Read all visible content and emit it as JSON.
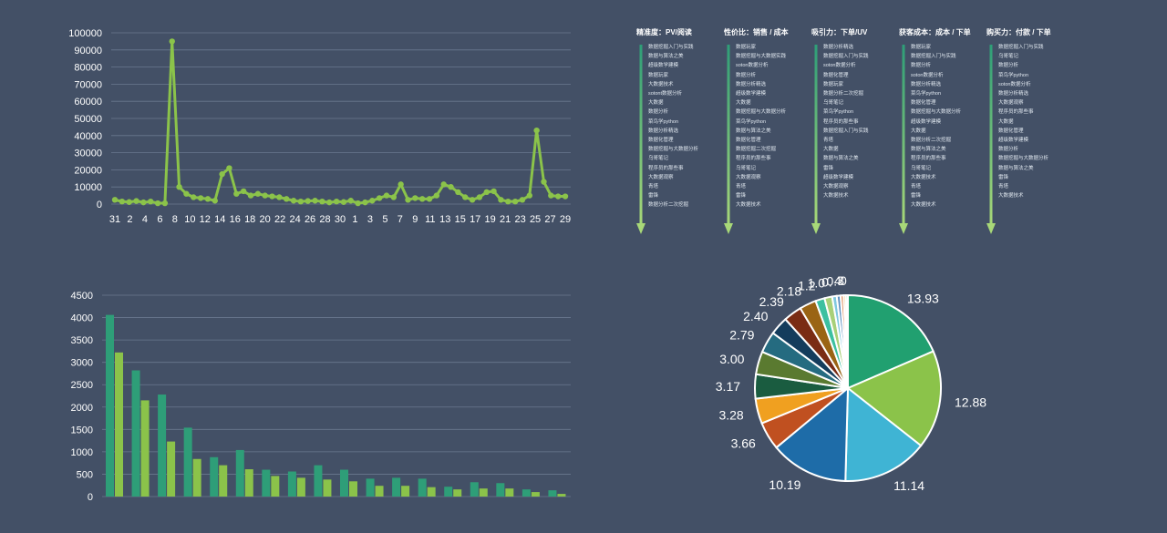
{
  "chart_data": [
    {
      "type": "line",
      "x_ticks": [
        "31",
        "2",
        "4",
        "6",
        "8",
        "10",
        "12",
        "14",
        "16",
        "18",
        "20",
        "22",
        "24",
        "26",
        "28",
        "30",
        "1",
        "3",
        "5",
        "7",
        "9",
        "11",
        "13",
        "15",
        "17",
        "19",
        "21",
        "23",
        "25",
        "27",
        "29"
      ],
      "series": [
        {
          "values": [
            2500,
            1500,
            1200,
            1800,
            1000,
            1500,
            500,
            500,
            95000,
            10000,
            6000,
            4000,
            3500,
            3000,
            2000,
            17500,
            21000,
            6000,
            7500,
            5000,
            6000,
            5000,
            4500,
            4000,
            3000,
            2000,
            1500,
            1800,
            2000,
            1500,
            1000,
            1500,
            1200,
            2000,
            500,
            1000,
            2000,
            3500,
            5000,
            4000,
            11500,
            2500,
            3500,
            3000,
            3000,
            5000,
            11500,
            10000,
            7000,
            4000,
            2500,
            4000,
            7000,
            7500,
            2500,
            1500,
            1500,
            2500,
            5000,
            43000,
            13000,
            5000,
            4500,
            4500
          ],
          "color": "#8bc34a"
        }
      ],
      "ylim": [
        0,
        100000
      ],
      "y_ticks": [
        0,
        10000,
        20000,
        30000,
        40000,
        50000,
        60000,
        70000,
        80000,
        90000,
        100000
      ],
      "grid": true
    },
    {
      "type": "bar",
      "series": [
        {
          "values": [
            4060,
            2820,
            2280,
            1540,
            880,
            1040,
            600,
            560,
            700,
            600,
            400,
            420,
            400,
            220,
            320,
            300,
            160,
            140
          ],
          "color": "#2e9e78"
        },
        {
          "values": [
            3220,
            2150,
            1230,
            840,
            700,
            610,
            460,
            420,
            380,
            340,
            240,
            240,
            210,
            160,
            180,
            180,
            100,
            60
          ],
          "color": "#8bc34a"
        }
      ],
      "ylim": [
        0,
        4500
      ],
      "y_ticks": [
        0,
        500,
        1000,
        1500,
        2000,
        2500,
        3000,
        3500,
        4000,
        4500
      ],
      "grid": true
    },
    {
      "type": "pie",
      "slices": [
        {
          "value": 13.93,
          "label": "13.93",
          "color": "#21a070"
        },
        {
          "value": 12.88,
          "label": "12.88",
          "color": "#8bc34a"
        },
        {
          "value": 11.14,
          "label": "11.14",
          "color": "#3fb4d4"
        },
        {
          "value": 10.19,
          "label": "10.19",
          "color": "#1e6ca8"
        },
        {
          "value": 3.66,
          "label": "3.66",
          "color": "#c05020"
        },
        {
          "value": 3.28,
          "label": "3.28",
          "color": "#f0a020"
        },
        {
          "value": 3.17,
          "label": "3.17",
          "color": "#1a5c40"
        },
        {
          "value": 3.0,
          "label": "3.00",
          "color": "#5a7a30"
        },
        {
          "value": 2.79,
          "label": "2.79",
          "color": "#256b80"
        },
        {
          "value": 2.4,
          "label": "2.40",
          "color": "#143c5c"
        },
        {
          "value": 2.39,
          "label": "2.39",
          "color": "#7a2c14"
        },
        {
          "value": 2.18,
          "label": "2.18",
          "color": "#9a6414"
        },
        {
          "value": 1.2,
          "label": "1.2",
          "color": "#3cc0a0"
        },
        {
          "value": 1.0,
          "label": "1.0",
          "color": "#a8d078"
        },
        {
          "value": 0.6,
          "label": "0.",
          "color": "#80c8e0"
        },
        {
          "value": 0.5,
          "label": "0.",
          "color": "#6090c0"
        },
        {
          "value": 0.4,
          "label": "4",
          "color": "#e09060"
        },
        {
          "value": 0.3,
          "label": "3",
          "color": "#f0c878"
        },
        {
          "value": 0.25,
          "label": "0",
          "color": "#4a8a70"
        }
      ]
    }
  ],
  "rankings": [
    {
      "title": "精准度：PV/阅读",
      "color": "#2e9e78",
      "items": [
        "数据挖掘入门与实践",
        "数据与算法之美",
        "超级数学建模",
        "数据玩家",
        "大数据技术",
        "sotont数据分析",
        "大数据",
        "数据分析",
        "菜鸟学python",
        "数据分析精选",
        "数据化管理",
        "数据挖掘与大数据分析",
        "乌哥笔记",
        "程序员的那些事",
        "大数据观察",
        "青塔",
        "雷锋",
        "数据分析二次挖掘"
      ]
    },
    {
      "title": "性价比：销售 / 成本",
      "color": "#2e9e78",
      "items": [
        "数据玩家",
        "数据挖掘与大数据实践",
        "soton数据分析",
        "数据分析",
        "数据分析精选",
        "超级数学建模",
        "大数据",
        "数据挖掘与大数据分析",
        "菜鸟学python",
        "数据与算法之美",
        "数据化管理",
        "数据挖掘二次挖掘",
        "程序员的那些事",
        "乌哥笔记",
        "大数据观察",
        "青塔",
        "雷锋",
        "大数据技术"
      ]
    },
    {
      "title": "吸引力：下单/UV",
      "color": "#2e9e78",
      "items": [
        "数据分析精选",
        "数据挖掘入门与实践",
        "soton数据分析",
        "数据化管理",
        "数据玩家",
        "数据分析二次挖掘",
        "乌哥笔记",
        "菜鸟学python",
        "程序员的那些事",
        "数据挖掘入门与实践",
        "青塔",
        "大数据",
        "数据与算法之美",
        "雷锋",
        "超级数学建模",
        "大数据观察",
        "大数据技术"
      ]
    },
    {
      "title": "获客成本：成本 / 下单",
      "color": "#2e9e78",
      "items": [
        "数据玩家",
        "数据挖掘入门与实践",
        "数据分析",
        "soton数据分析",
        "数据分析精选",
        "菜鸟学python",
        "数据化管理",
        "数据挖掘与大数据分析",
        "超级数学建模",
        "大数据",
        "数据分析二次挖掘",
        "数据与算法之美",
        "程序员的那些事",
        "乌哥笔记",
        "大数据技术",
        "青塔",
        "雷锋",
        "大数据技术"
      ]
    },
    {
      "title": "购买力：付款 / 下单",
      "color": "#2e9e78",
      "items": [
        "数据挖掘入门与实践",
        "乌哥笔记",
        "数据分析",
        "菜鸟学python",
        "soton数据分析",
        "数据分析精选",
        "大数据观察",
        "程序员的那些事",
        "大数据",
        "数据化管理",
        "超级数学建模",
        "数据分析",
        "数据挖掘与大数据分析",
        "数据与算法之美",
        "雷锋",
        "青塔",
        "大数据技术"
      ]
    }
  ]
}
